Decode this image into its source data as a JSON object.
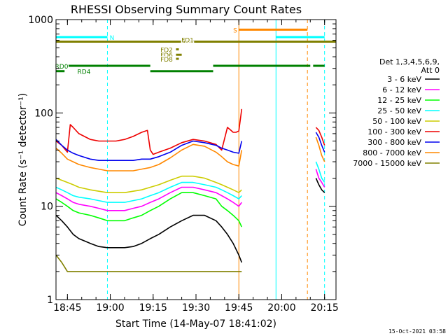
{
  "chart_data": {
    "type": "line",
    "title": "RHESSI Observing Summary Count Rates",
    "xlabel": "Start Time (14-May-07 18:41:02)",
    "ylabel": "Count Rate (s⁻¹ detector⁻¹)",
    "x_ticks": [
      "18:45",
      "19:00",
      "19:15",
      "19:30",
      "19:45",
      "20:00",
      "20:15"
    ],
    "x_tick_minutes": [
      4,
      19,
      34,
      49,
      64,
      79,
      94
    ],
    "xlim_minutes": [
      0,
      98
    ],
    "y_scale": "log",
    "ylim": [
      1,
      1000
    ],
    "y_ticks": [
      1,
      10,
      100,
      1000
    ],
    "y_tick_labels": [
      "1",
      "10",
      "100",
      "1000"
    ],
    "legend": {
      "placement": "right",
      "header": [
        "Det 1,3,4,5,6,9,",
        "Att 0"
      ],
      "entries": [
        {
          "name": "3 - 6 keV",
          "color": "#000000"
        },
        {
          "name": "6 - 12 keV",
          "color": "#ff00ff"
        },
        {
          "name": "12 - 25 keV",
          "color": "#00ff00"
        },
        {
          "name": "25 - 50 keV",
          "color": "#00ffff"
        },
        {
          "name": "50 - 100 keV",
          "color": "#cccc00"
        },
        {
          "name": "100 - 300 keV",
          "color": "#ee0000"
        },
        {
          "name": "300 - 800 keV",
          "color": "#0000ee"
        },
        {
          "name": "800 - 7000 keV",
          "color": "#ff8800"
        },
        {
          "name": "7000 - 15000 keV",
          "color": "#808000"
        }
      ]
    },
    "series": [
      {
        "name": "100 - 300 keV",
        "color": "#ee0000",
        "x": [
          0,
          2,
          4,
          5,
          6,
          8,
          12,
          15,
          18,
          21,
          24,
          27,
          30,
          32,
          33,
          34,
          36,
          40,
          44,
          48,
          52,
          56,
          58,
          60,
          61,
          62,
          63,
          64,
          65
        ],
        "y": [
          50,
          45,
          38,
          75,
          70,
          60,
          52,
          50,
          50,
          50,
          52,
          56,
          62,
          65,
          40,
          36,
          38,
          42,
          48,
          52,
          50,
          46,
          40,
          70,
          66,
          62,
          62,
          64,
          110
        ]
      },
      {
        "name": "300 - 800 keV",
        "color": "#0000ee",
        "x": [
          0,
          2,
          4,
          6,
          8,
          12,
          15,
          18,
          21,
          24,
          27,
          30,
          33,
          36,
          40,
          44,
          48,
          52,
          56,
          58,
          60,
          62,
          64,
          65
        ],
        "y": [
          52,
          45,
          40,
          37,
          35,
          32,
          31,
          31,
          31,
          31,
          31,
          32,
          32,
          34,
          38,
          45,
          50,
          48,
          45,
          42,
          40,
          38,
          37,
          50
        ]
      },
      {
        "name": "800 - 7000 keV",
        "color": "#ff8800",
        "x": [
          0,
          2,
          4,
          6,
          8,
          12,
          15,
          18,
          21,
          24,
          27,
          30,
          33,
          36,
          40,
          44,
          48,
          52,
          56,
          58,
          60,
          62,
          64,
          65
        ],
        "y": [
          42,
          37,
          32,
          30,
          28,
          26,
          25,
          24,
          24,
          24,
          24,
          25,
          26,
          28,
          33,
          40,
          46,
          44,
          38,
          34,
          30,
          28,
          27,
          40
        ]
      },
      {
        "name": "50 - 100 keV",
        "color": "#cccc00",
        "x": [
          0,
          2,
          4,
          6,
          8,
          12,
          15,
          18,
          21,
          24,
          27,
          30,
          33,
          36,
          40,
          44,
          48,
          52,
          56,
          58,
          60,
          62,
          64,
          65
        ],
        "y": [
          20,
          19,
          18,
          17,
          16,
          15,
          14.5,
          14,
          14,
          14,
          14.5,
          15,
          16,
          17,
          19,
          21,
          21,
          20,
          18,
          17,
          16,
          15,
          14,
          15
        ]
      },
      {
        "name": "25 - 50 keV",
        "color": "#00ffff",
        "x": [
          0,
          2,
          4,
          6,
          8,
          12,
          15,
          18,
          21,
          24,
          27,
          30,
          33,
          36,
          40,
          44,
          48,
          52,
          56,
          58,
          60,
          62,
          64,
          65
        ],
        "y": [
          16,
          15,
          14,
          13,
          12.5,
          12,
          11.5,
          11,
          11,
          11,
          11.5,
          12,
          13,
          14,
          16,
          18,
          18,
          17,
          16,
          15,
          14,
          13,
          12,
          13
        ]
      },
      {
        "name": "6 - 12 keV",
        "color": "#ff00ff",
        "x": [
          0,
          2,
          4,
          6,
          8,
          12,
          15,
          18,
          21,
          24,
          27,
          30,
          33,
          36,
          40,
          44,
          48,
          52,
          56,
          58,
          60,
          62,
          64,
          65
        ],
        "y": [
          14,
          13,
          12,
          11,
          10.5,
          10,
          9.5,
          9,
          9,
          9,
          9.5,
          10,
          11,
          12,
          14,
          16,
          16,
          15,
          14,
          13,
          12,
          11,
          10,
          11
        ]
      },
      {
        "name": "12 - 25 keV",
        "color": "#00ff00",
        "x": [
          0,
          2,
          4,
          6,
          8,
          12,
          15,
          18,
          21,
          24,
          27,
          30,
          33,
          36,
          40,
          44,
          48,
          52,
          56,
          58,
          60,
          62,
          64,
          65
        ],
        "y": [
          12,
          11,
          10,
          9,
          8.5,
          8,
          7.5,
          7,
          7,
          7,
          7.5,
          8,
          9,
          10,
          12,
          14,
          14,
          13,
          12,
          10,
          9,
          8,
          7,
          6
        ]
      },
      {
        "name": "3 - 6 keV",
        "color": "#000000",
        "x": [
          0,
          2,
          4,
          6,
          8,
          12,
          15,
          18,
          21,
          24,
          27,
          30,
          33,
          36,
          40,
          44,
          48,
          52,
          56,
          58,
          60,
          62,
          64,
          65
        ],
        "y": [
          8,
          7,
          6,
          5,
          4.5,
          4,
          3.7,
          3.6,
          3.6,
          3.6,
          3.7,
          4,
          4.5,
          5,
          6,
          7,
          8,
          8,
          7,
          6,
          5,
          4,
          3,
          2.5
        ]
      },
      {
        "name": "7000 - 15000 keV",
        "color": "#808000",
        "x": [
          0,
          2,
          4,
          6,
          8,
          12,
          15,
          18,
          21,
          24,
          27,
          30,
          33,
          36,
          40,
          44,
          48,
          52,
          56,
          58,
          60,
          62,
          64,
          65
        ],
        "y": [
          3,
          2.5,
          2,
          2,
          2,
          2,
          2,
          2,
          2,
          2,
          2,
          2,
          2,
          2,
          2,
          2,
          2,
          2,
          2,
          2,
          2,
          2,
          2,
          2
        ]
      },
      {
        "name": "100 - 300 keV",
        "color": "#ee0000",
        "x": [
          91,
          92,
          93,
          94
        ],
        "y": [
          70,
          65,
          55,
          45
        ]
      },
      {
        "name": "300 - 800 keV",
        "color": "#0000ee",
        "x": [
          91,
          92,
          93,
          94
        ],
        "y": [
          62,
          55,
          45,
          38
        ]
      },
      {
        "name": "800 - 7000 keV",
        "color": "#ff8800",
        "x": [
          91,
          92,
          93,
          94
        ],
        "y": [
          55,
          45,
          35,
          30
        ]
      },
      {
        "name": "25 - 50 keV",
        "color": "#00ffff",
        "x": [
          91,
          92,
          93,
          94
        ],
        "y": [
          30,
          25,
          20,
          18
        ]
      },
      {
        "name": "6 - 12 keV",
        "color": "#ff00ff",
        "x": [
          91,
          92,
          93,
          94
        ],
        "y": [
          25,
          20,
          18,
          16
        ]
      },
      {
        "name": "3 - 6 keV",
        "color": "#000000",
        "x": [
          91,
          92,
          93,
          94
        ],
        "y": [
          20,
          17,
          15,
          14
        ]
      }
    ],
    "flag_bars": [
      {
        "label": "N",
        "color": "#00ffff",
        "y": 650,
        "segments": [
          [
            0,
            18
          ],
          [
            77,
            94
          ]
        ]
      },
      {
        "label": "S",
        "color": "#ff8800",
        "y": 780,
        "segments": [
          [
            64,
            88
          ]
        ]
      },
      {
        "label": "FD1",
        "color": "#808000",
        "y": 580,
        "segments": [
          [
            0,
            98
          ]
        ]
      },
      {
        "label": "FD2",
        "color": "#808000",
        "y": 480,
        "segments": [
          [
            42,
            43
          ]
        ]
      },
      {
        "label": "FD6",
        "color": "#808000",
        "y": 420,
        "segments": [
          [
            42,
            44
          ]
        ]
      },
      {
        "label": "FD8",
        "color": "#808000",
        "y": 380,
        "segments": [
          [
            42,
            43
          ]
        ]
      },
      {
        "label": "RD0",
        "color": "#008000",
        "y": 320,
        "segments": [
          [
            4,
            33
          ],
          [
            55,
            89
          ],
          [
            90,
            94
          ]
        ]
      },
      {
        "label": "RD4",
        "color": "#008000",
        "y": 280,
        "segments": [
          [
            0,
            3
          ],
          [
            33,
            55
          ]
        ]
      }
    ],
    "vertical_markers": [
      {
        "x": 18,
        "color": "#00ffff",
        "style": "dashed"
      },
      {
        "x": 64,
        "color": "#ff8800",
        "style": "solid"
      },
      {
        "x": 77,
        "color": "#00ffff",
        "style": "solid"
      },
      {
        "x": 88,
        "color": "#ff8800",
        "style": "dashed"
      },
      {
        "x": 94,
        "color": "#00ffff",
        "style": "dashed"
      }
    ],
    "timestamp": "15-Oct-2021 03:58"
  }
}
